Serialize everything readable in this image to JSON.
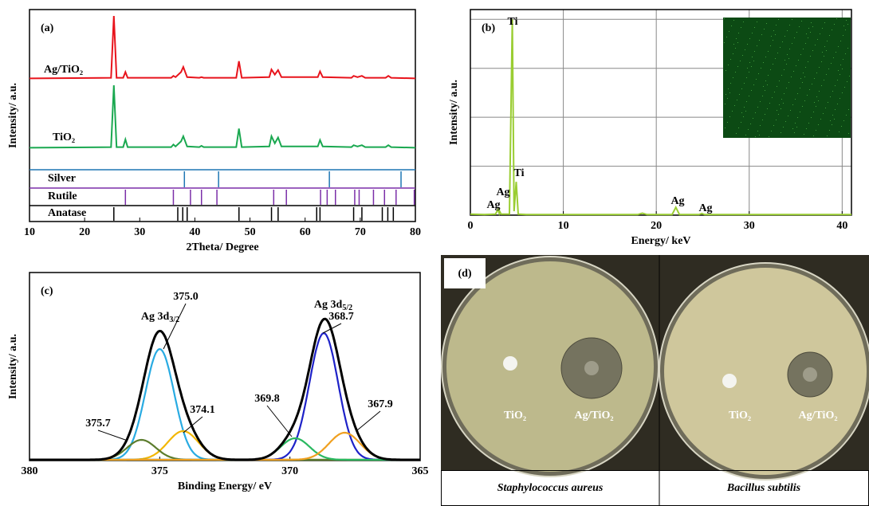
{
  "chart_data": [
    {
      "type": "xrd",
      "panel_label": "(a)",
      "xlabel": "2Theta/ Degree",
      "ylabel": "Intensity/ a.u.",
      "xlim": [
        10,
        80
      ],
      "xticks": [
        10,
        20,
        30,
        40,
        50,
        60,
        70,
        80
      ],
      "ylim": [
        0,
        100
      ],
      "x": [
        10,
        24.8,
        25.3,
        25.8,
        27.0,
        27.4,
        27.8,
        35.7,
        36.1,
        36.5,
        37.5,
        37.9,
        38.6,
        40.8,
        41.2,
        41.6,
        47.5,
        48.0,
        48.5,
        53.5,
        53.9,
        54.5,
        55.1,
        55.7,
        62.3,
        62.7,
        63.2,
        68.4,
        68.8,
        69.5,
        70.3,
        70.9,
        74.6,
        75.1,
        75.6,
        80
      ],
      "series": [
        {
          "name": "Ag/TiO₂",
          "color": "#e8141c",
          "values": [
            2,
            3,
            100,
            3,
            3,
            12,
            3,
            3,
            6,
            4,
            12,
            20,
            4,
            3,
            4,
            3,
            3,
            29,
            3,
            4,
            16,
            8,
            15,
            4,
            4,
            13,
            4,
            3,
            6,
            4,
            6,
            3,
            3,
            6,
            3,
            2
          ]
        },
        {
          "name": "TiO₂",
          "color": "#1aa850",
          "values": [
            2,
            3,
            100,
            3,
            3,
            15,
            3,
            3,
            7,
            4,
            12,
            20,
            4,
            3,
            5,
            3,
            3,
            32,
            3,
            4,
            20,
            9,
            18,
            4,
            4,
            14,
            4,
            3,
            6,
            4,
            6,
            3,
            3,
            6,
            3,
            2
          ]
        }
      ],
      "references": [
        {
          "name": "Silver",
          "color": "#1f77b4",
          "positions": [
            38.1,
            44.3,
            64.4,
            77.4
          ]
        },
        {
          "name": "Rutile",
          "color": "#7b2fa8",
          "positions": [
            27.4,
            36.1,
            39.2,
            41.2,
            44.0,
            54.3,
            56.6,
            62.8,
            64.0,
            65.5,
            69.0,
            69.8,
            72.4,
            74.4,
            76.5,
            79.8
          ]
        },
        {
          "name": "Anatase",
          "color": "#000000",
          "positions": [
            25.3,
            36.9,
            37.8,
            38.6,
            48.0,
            53.9,
            55.1,
            62.1,
            62.7,
            68.8,
            70.3,
            74.0,
            75.0,
            76.0
          ]
        }
      ]
    },
    {
      "type": "line",
      "panel_label": "(b)",
      "xlabel": "Energy/ keV",
      "ylabel": "Intensity/ a.u.",
      "xlim": [
        0,
        41
      ],
      "xticks": [
        0,
        10,
        20,
        30,
        40
      ],
      "ylim": [
        0,
        105
      ],
      "yticks": [
        0,
        25,
        50,
        75,
        100
      ],
      "grid": true,
      "x": [
        0,
        1.5,
        2.7,
        2.98,
        3.1,
        3.15,
        3.3,
        4.2,
        4.51,
        4.7,
        4.93,
        5.15,
        6,
        18,
        18.5,
        19,
        21.7,
        22.1,
        22.5,
        24.6,
        24.9,
        25.2,
        41
      ],
      "values": [
        0.5,
        0.3,
        0.5,
        3,
        1,
        2,
        0.5,
        0.5,
        100,
        2,
        17,
        0.5,
        0.3,
        0.3,
        1,
        0.3,
        0.3,
        4,
        0.3,
        0.3,
        0.8,
        0.3,
        0.3
      ],
      "color": "#9acd32",
      "annotations": [
        "Ti",
        "Ti",
        "Ag",
        "Ag",
        "Ag",
        "Ag"
      ]
    },
    {
      "type": "xps",
      "panel_label": "(c)",
      "xlabel": "Binding Energy/ eV",
      "ylabel": "Intensity/ a.u.",
      "xlim": [
        380,
        365
      ],
      "xticks": [
        380,
        375,
        370,
        365
      ],
      "ylim": [
        0,
        235
      ],
      "envelope_color": "#000000",
      "peak_labels": [
        {
          "text": "Ag 3d",
          "sub": "3/2"
        },
        {
          "text": "Ag 3d",
          "sub": "5/2"
        }
      ],
      "components": [
        {
          "center": 375,
          "center_label": "375.0",
          "height": 139,
          "fwhm": 1.3,
          "color": "#29abe2"
        },
        {
          "center": 374.1,
          "center_label": "374.1",
          "height": 36,
          "fwhm": 1.4,
          "color": "#f2b705"
        },
        {
          "center": 375.7,
          "center_label": "375.7",
          "height": 25,
          "fwhm": 1.3,
          "color": "#5c7d2e"
        },
        {
          "center": 368.7,
          "center_label": "368.7",
          "height": 159,
          "fwhm": 1.3,
          "color": "#1e22c8"
        },
        {
          "center": 369.8,
          "center_label": "369.8",
          "height": 27,
          "fwhm": 1.3,
          "color": "#2ab860"
        },
        {
          "center": 367.9,
          "center_label": "367.9",
          "height": 34,
          "fwhm": 1.4,
          "color": "#f0a020"
        }
      ]
    }
  ],
  "photo": {
    "panel_label": "(d)",
    "plates": [
      {
        "caption": "Staphylococcus aureus",
        "labels": [
          "TiO₂",
          "Ag/TiO₂"
        ]
      },
      {
        "caption": "Bacillus subtilis",
        "labels": [
          "TiO₂",
          "Ag/TiO₂"
        ]
      }
    ]
  }
}
